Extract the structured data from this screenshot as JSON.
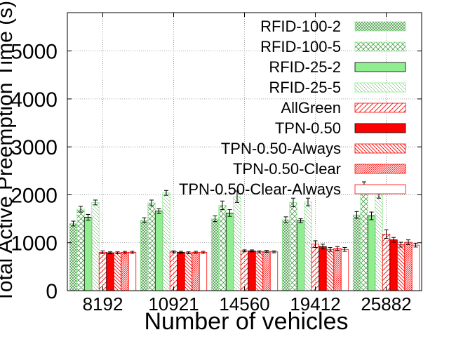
{
  "chart_data": {
    "type": "bar",
    "title": "",
    "xlabel": "Number of vehicles",
    "ylabel": "Total Active Preemption Time (s)",
    "ylim": [
      0,
      5800
    ],
    "yticks": [
      0,
      1000,
      2000,
      3000,
      4000,
      5000
    ],
    "ytick_labels": [
      "0",
      "1000",
      "2000",
      "3000",
      "4000",
      "5000"
    ],
    "grid": true,
    "legend_position": "top-right",
    "error_bars": true,
    "categories": [
      "8192",
      "10921",
      "14560",
      "19412",
      "25882"
    ],
    "series": [
      {
        "name": "RFID-100-2",
        "color": "#90ee90",
        "pattern": "crosshatch-dense",
        "values": [
          1400,
          1470,
          1500,
          1480,
          1580
        ],
        "errors": [
          50,
          50,
          60,
          60,
          70
        ]
      },
      {
        "name": "RFID-100-5",
        "color": "#90ee90",
        "pattern": "crosshatch-sparse",
        "values": [
          1700,
          1830,
          1780,
          1840,
          2150
        ],
        "errors": [
          60,
          60,
          90,
          90,
          120
        ]
      },
      {
        "name": "RFID-25-2",
        "color": "#90ee90",
        "pattern": "solid",
        "values": [
          1530,
          1660,
          1620,
          1460,
          1560
        ],
        "errors": [
          60,
          50,
          70,
          40,
          80
        ]
      },
      {
        "name": "RFID-25-5",
        "color": "#90ee90",
        "pattern": "crosshatch-fine",
        "values": [
          1840,
          2040,
          1960,
          1850,
          2050
        ],
        "errors": [
          50,
          50,
          120,
          80,
          120
        ]
      },
      {
        "name": "AllGreen",
        "color": "#ff0000",
        "pattern": "diagonal-sparse",
        "values": [
          800,
          810,
          830,
          970,
          1180
        ],
        "errors": [
          30,
          20,
          20,
          70,
          90
        ]
      },
      {
        "name": "TPN-0.50",
        "color": "#ff0000",
        "pattern": "solid",
        "values": [
          790,
          800,
          830,
          920,
          1060
        ],
        "errors": [
          20,
          20,
          20,
          50,
          50
        ]
      },
      {
        "name": "TPN-0.50-Always",
        "color": "#ff0000",
        "pattern": "diagonal-medium",
        "values": [
          790,
          790,
          810,
          860,
          960
        ],
        "errors": [
          20,
          20,
          20,
          40,
          50
        ]
      },
      {
        "name": "TPN-0.50-Clear",
        "color": "#ff0000",
        "pattern": "diagonal-dense",
        "values": [
          800,
          800,
          820,
          880,
          1010
        ],
        "errors": [
          20,
          20,
          20,
          40,
          50
        ]
      },
      {
        "name": "TPN-0.50-Clear-Always",
        "color": "#ff0000",
        "pattern": "hollow",
        "values": [
          800,
          800,
          810,
          860,
          950
        ],
        "errors": [
          20,
          20,
          20,
          40,
          40
        ]
      }
    ]
  }
}
